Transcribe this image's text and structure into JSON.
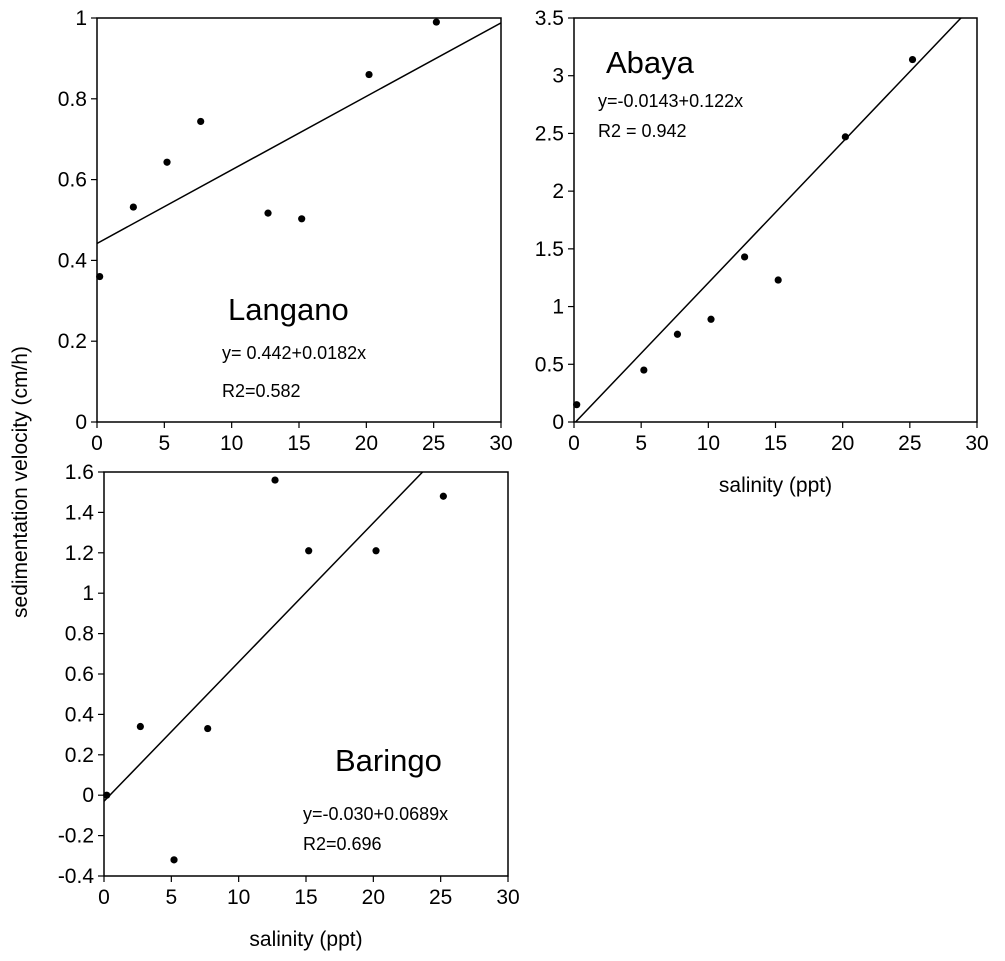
{
  "shared_ylabel": "sedimentation velocity (cm/h)",
  "chart_data": [
    {
      "type": "scatter",
      "title": "Langano",
      "xlabel": "",
      "ylabel": "",
      "xlim": [
        0,
        30
      ],
      "ylim": [
        0,
        1
      ],
      "xticks": [
        0,
        5,
        10,
        15,
        20,
        25,
        30
      ],
      "yticks": [
        0,
        0.2,
        0.4,
        0.6,
        0.8,
        1
      ],
      "series": [
        {
          "points": [
            {
              "x": 0.2,
              "y": 0.36
            },
            {
              "x": 2.7,
              "y": 0.532
            },
            {
              "x": 5.2,
              "y": 0.643
            },
            {
              "x": 7.7,
              "y": 0.744
            },
            {
              "x": 12.7,
              "y": 0.517
            },
            {
              "x": 15.2,
              "y": 0.503
            },
            {
              "x": 20.2,
              "y": 0.86
            },
            {
              "x": 25.2,
              "y": 0.99
            }
          ]
        }
      ],
      "fit": {
        "intercept": 0.442,
        "slope": 0.0182
      },
      "annotations": [
        "y= 0.442+0.0182x",
        "R2=0.582"
      ]
    },
    {
      "type": "scatter",
      "title": "Abaya",
      "xlabel": "salinity (ppt)",
      "ylabel": "",
      "xlim": [
        0,
        30
      ],
      "ylim": [
        0,
        3.5
      ],
      "xticks": [
        0,
        5,
        10,
        15,
        20,
        25,
        30
      ],
      "yticks": [
        0,
        0.5,
        1,
        1.5,
        2,
        2.5,
        3,
        3.5
      ],
      "series": [
        {
          "points": [
            {
              "x": 0.2,
              "y": 0.15
            },
            {
              "x": 5.2,
              "y": 0.45
            },
            {
              "x": 7.7,
              "y": 0.76
            },
            {
              "x": 10.2,
              "y": 0.89
            },
            {
              "x": 12.7,
              "y": 1.43
            },
            {
              "x": 15.2,
              "y": 1.23
            },
            {
              "x": 20.2,
              "y": 2.47
            },
            {
              "x": 25.2,
              "y": 3.14
            }
          ]
        }
      ],
      "fit": {
        "intercept": -0.0143,
        "slope": 0.122
      },
      "annotations": [
        "y=-0.0143+0.122x",
        "R2 = 0.942"
      ]
    },
    {
      "type": "scatter",
      "title": "Baringo",
      "xlabel": "salinity (ppt)",
      "ylabel": "",
      "xlim": [
        0,
        30
      ],
      "ylim": [
        -0.4,
        1.6
      ],
      "xticks": [
        0,
        5,
        10,
        15,
        20,
        25,
        30
      ],
      "yticks": [
        -0.4,
        -0.2,
        0,
        0.2,
        0.4,
        0.6,
        0.8,
        1,
        1.2,
        1.4,
        1.6
      ],
      "series": [
        {
          "points": [
            {
              "x": 0.2,
              "y": 0.0
            },
            {
              "x": 2.7,
              "y": 0.34
            },
            {
              "x": 5.2,
              "y": -0.32
            },
            {
              "x": 7.7,
              "y": 0.33
            },
            {
              "x": 12.7,
              "y": 1.56
            },
            {
              "x": 15.2,
              "y": 1.21
            },
            {
              "x": 20.2,
              "y": 1.21
            },
            {
              "x": 25.2,
              "y": 1.48
            }
          ]
        }
      ],
      "fit": {
        "intercept": -0.03,
        "slope": 0.0689
      },
      "annotations": [
        "y=-0.030+0.0689x",
        "R2=0.696"
      ]
    }
  ]
}
